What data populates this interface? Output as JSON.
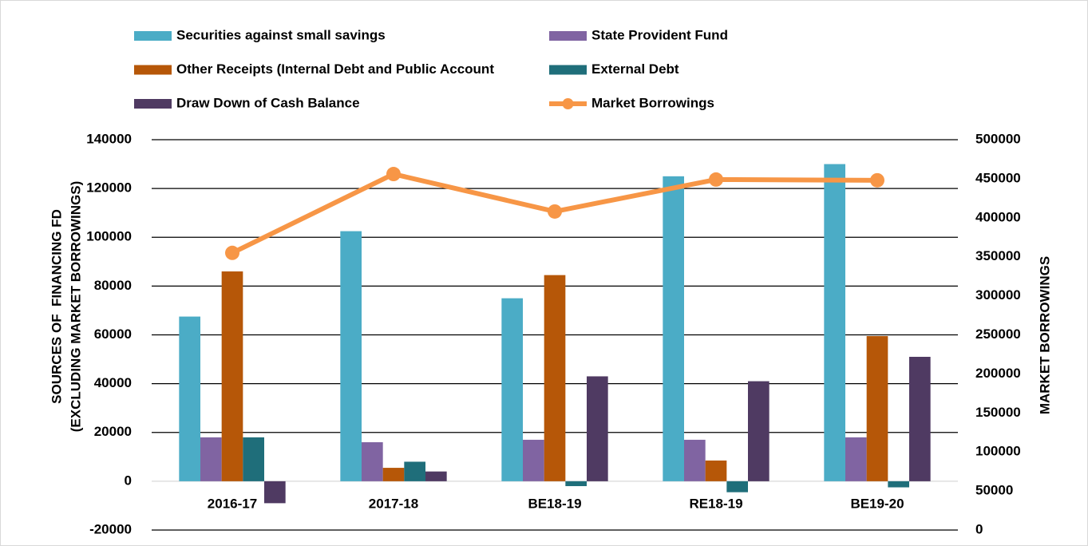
{
  "chart_data": {
    "type": "bar",
    "categories": [
      "2016-17",
      "2017-18",
      "BE18-19",
      "RE18-19",
      "BE19-20"
    ],
    "ylabel": [
      "SOURCES OF  FINANCING FD",
      "(EXCLUDING MARKET BORROWINGS)"
    ],
    "y2label": "MARKET BORROWINGS",
    "ylim": [
      -20000,
      140000
    ],
    "yticks": [
      -20000,
      0,
      20000,
      40000,
      60000,
      80000,
      100000,
      120000,
      140000
    ],
    "y2lim": [
      0,
      500000
    ],
    "y2ticks": [
      0,
      50000,
      100000,
      150000,
      200000,
      250000,
      300000,
      350000,
      400000,
      450000,
      500000
    ],
    "grid": true,
    "legend": "top",
    "series": [
      {
        "name": "Securities against small savings",
        "color": "#4bacc6",
        "values": [
          67500,
          102500,
          75000,
          125000,
          130000
        ]
      },
      {
        "name": "State Provident Fund",
        "color": "#8064a2",
        "values": [
          18000,
          16000,
          17000,
          17000,
          18000
        ]
      },
      {
        "name": "Other Receipts (Internal Debt and Public Account",
        "color": "#b65708",
        "values": [
          86000,
          5500,
          84500,
          8500,
          59500
        ]
      },
      {
        "name": "External Debt",
        "color": "#1f6e7a",
        "values": [
          18000,
          8000,
          -2000,
          -4500,
          -2500
        ]
      },
      {
        "name": "Draw Down of Cash Balance",
        "color": "#4f3a62",
        "values": [
          -9000,
          4000,
          43000,
          41000,
          51000
        ]
      },
      {
        "name": "Market Borrowings",
        "color": "#f79646",
        "type": "line",
        "axis": "y2",
        "values": [
          355000,
          456000,
          408000,
          449000,
          448000
        ]
      }
    ]
  }
}
